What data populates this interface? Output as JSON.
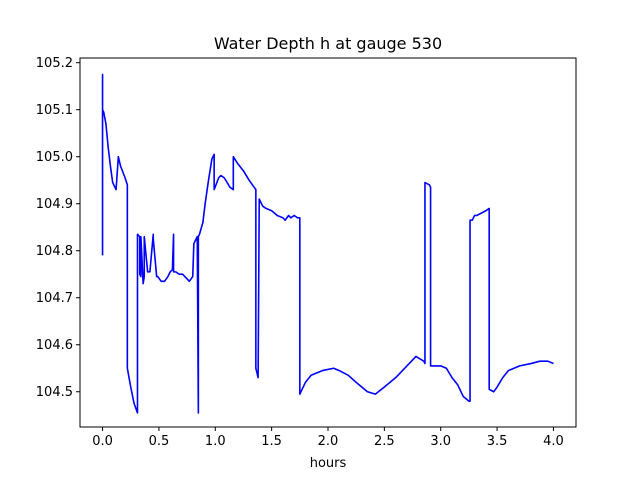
{
  "chart_data": {
    "type": "line",
    "title": "Water Depth h at gauge 530",
    "xlabel": "hours",
    "ylabel": "",
    "xlim": [
      -0.2,
      4.2
    ],
    "ylim": [
      104.425,
      105.21
    ],
    "xticks": [
      0.0,
      0.5,
      1.0,
      1.5,
      2.0,
      2.5,
      3.0,
      3.5,
      4.0
    ],
    "xtick_labels": [
      "0.0",
      "0.5",
      "1.0",
      "1.5",
      "2.0",
      "2.5",
      "3.0",
      "3.5",
      "4.0"
    ],
    "yticks": [
      104.5,
      104.6,
      104.7,
      104.8,
      104.9,
      105.0,
      105.1,
      105.2
    ],
    "ytick_labels": [
      "104.5",
      "104.6",
      "104.7",
      "104.8",
      "104.9",
      "105.0",
      "105.1",
      "105.2"
    ],
    "grid": false,
    "series": [
      {
        "color": "#0000ff",
        "x": [
          0.0,
          0.0,
          0.0,
          0.01,
          0.03,
          0.05,
          0.07,
          0.09,
          0.12,
          0.14,
          0.15,
          0.16,
          0.2,
          0.22,
          0.22,
          0.25,
          0.28,
          0.31,
          0.31,
          0.33,
          0.33,
          0.34,
          0.34,
          0.36,
          0.37,
          0.37,
          0.4,
          0.4,
          0.42,
          0.45,
          0.45,
          0.48,
          0.49,
          0.52,
          0.55,
          0.58,
          0.6,
          0.62,
          0.63,
          0.63,
          0.65,
          0.68,
          0.71,
          0.73,
          0.77,
          0.8,
          0.81,
          0.83,
          0.84,
          0.85,
          0.85,
          0.86,
          0.89,
          0.91,
          0.94,
          0.97,
          0.99,
          0.99,
          1.03,
          1.05,
          1.08,
          1.13,
          1.16,
          1.16,
          1.2,
          1.25,
          1.3,
          1.36,
          1.36,
          1.38,
          1.39,
          1.42,
          1.45,
          1.5,
          1.55,
          1.6,
          1.62,
          1.65,
          1.67,
          1.7,
          1.73,
          1.75,
          1.75,
          1.8,
          1.85,
          1.95,
          2.05,
          2.1,
          2.18,
          2.25,
          2.35,
          2.42,
          2.5,
          2.6,
          2.7,
          2.78,
          2.85,
          2.86,
          2.86,
          2.9,
          2.91,
          2.91,
          3.0,
          3.05,
          3.1,
          3.15,
          3.2,
          3.25,
          3.26,
          3.26,
          3.28,
          3.3,
          3.32,
          3.36,
          3.4,
          3.43,
          3.43,
          3.47,
          3.5,
          3.55,
          3.6,
          3.7,
          3.8,
          3.88,
          3.95,
          4.0
        ],
        "y": [
          104.79,
          105.175,
          105.1,
          105.095,
          105.07,
          105.02,
          104.98,
          104.945,
          104.93,
          105.0,
          104.99,
          104.98,
          104.955,
          104.94,
          104.55,
          104.51,
          104.475,
          104.455,
          104.835,
          104.83,
          104.75,
          104.745,
          104.83,
          104.73,
          104.745,
          104.83,
          104.755,
          104.755,
          104.755,
          104.835,
          104.825,
          104.745,
          104.745,
          104.735,
          104.735,
          104.745,
          104.755,
          104.76,
          104.835,
          104.755,
          104.755,
          104.75,
          104.75,
          104.745,
          104.735,
          104.745,
          104.815,
          104.825,
          104.83,
          104.455,
          104.83,
          104.835,
          104.86,
          104.9,
          104.95,
          104.995,
          105.005,
          104.93,
          104.955,
          104.96,
          104.955,
          104.935,
          104.93,
          105.0,
          104.985,
          104.97,
          104.95,
          104.93,
          104.55,
          104.53,
          104.91,
          104.895,
          104.89,
          104.885,
          104.875,
          104.87,
          104.865,
          104.875,
          104.87,
          104.875,
          104.87,
          104.87,
          104.495,
          104.52,
          104.535,
          104.545,
          104.55,
          104.545,
          104.535,
          104.52,
          104.5,
          104.495,
          104.51,
          104.53,
          104.555,
          104.575,
          104.565,
          104.56,
          104.945,
          104.94,
          104.935,
          104.555,
          104.555,
          104.55,
          104.53,
          104.515,
          104.49,
          104.48,
          104.48,
          104.865,
          104.865,
          104.875,
          104.875,
          104.88,
          104.885,
          104.89,
          104.505,
          104.5,
          104.51,
          104.53,
          104.545,
          104.555,
          104.56,
          104.565,
          104.565,
          104.56
        ]
      }
    ]
  }
}
